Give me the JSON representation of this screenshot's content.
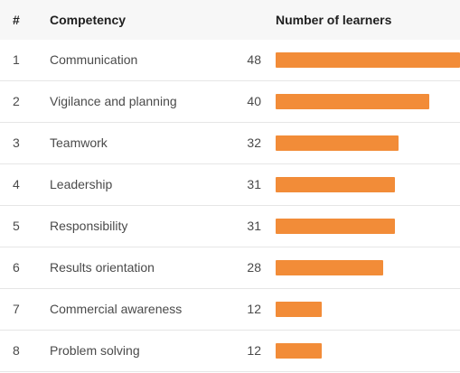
{
  "header": {
    "rank_label": "#",
    "competency_label": "Competency",
    "count_label": "Number of learners"
  },
  "colors": {
    "bar": "#f28c38"
  },
  "chart_data": {
    "type": "bar",
    "orientation": "horizontal",
    "xlabel": "Number of learners",
    "ylabel": "Competency",
    "ranks": [
      "1",
      "2",
      "3",
      "4",
      "5",
      "6",
      "7",
      "8"
    ],
    "categories": [
      "Communication",
      "Vigilance and planning",
      "Teamwork",
      "Leadership",
      "Responsibility",
      "Results orientation",
      "Commercial awareness",
      "Problem solving"
    ],
    "values": [
      48,
      40,
      32,
      31,
      31,
      28,
      12,
      12
    ],
    "xlim": [
      0,
      48
    ],
    "grid": false,
    "legend": "none"
  }
}
